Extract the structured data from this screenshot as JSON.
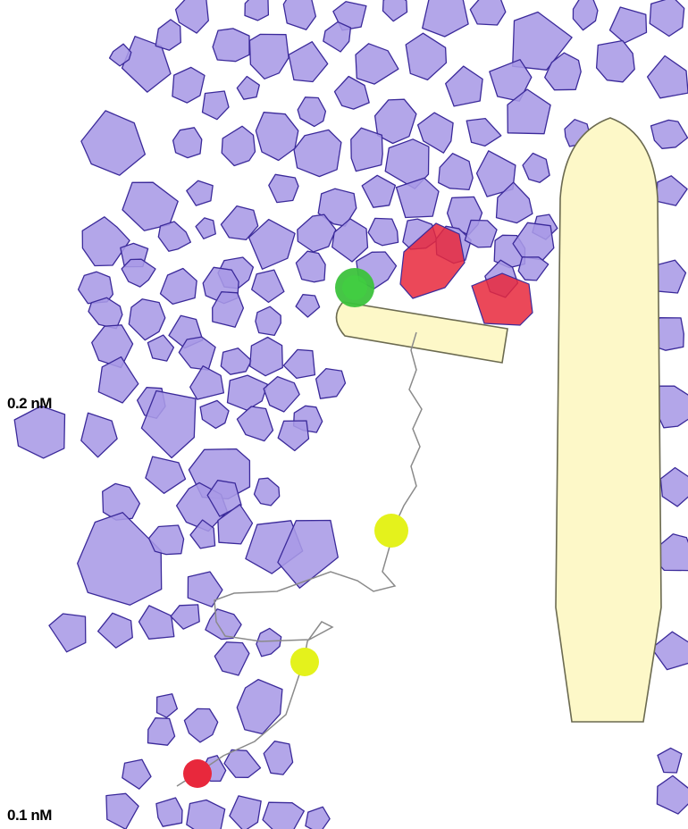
{
  "labels": {
    "upper_concentration": "0.2 nM",
    "lower_concentration": "0.1 nM"
  },
  "colors": {
    "background": "#ffffff",
    "particle_fill": "#a99ae6",
    "particle_stroke": "#3b2a9a",
    "membrane_fill": "#fdf8c8",
    "membrane_stroke": "#6b6a50",
    "marker_green": "#3cc23c",
    "marker_red": "#e8283c",
    "marker_yellow": "#e4f21c",
    "tether_line": "#8a8a8a"
  },
  "icons": {
    "particle": "polygon-particle-icon",
    "marker": "circle-marker-icon"
  }
}
